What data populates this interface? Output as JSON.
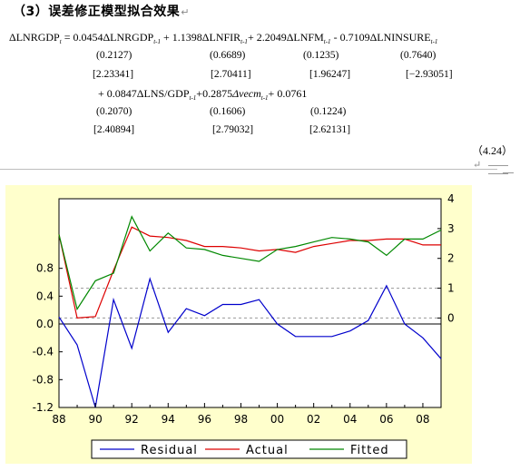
{
  "heading": "（3）误差修正模型拟合效果",
  "paragraph_mark": "↵",
  "equation": {
    "lhs": "ΔLNRGDP",
    "lhs_sub": "t",
    "eq_sign": "=",
    "line1_terms": [
      {
        "coef": "0.0454",
        "var": "ΔLNRGDP",
        "sub": "t-1",
        "op": ""
      },
      {
        "coef": "1.1398",
        "var": "ΔLNFIR",
        "sub": "t-1",
        "op": "+"
      },
      {
        "coef": "2.2049",
        "var": "ΔLNFM",
        "sub": "t-1",
        "op": "+"
      },
      {
        "coef": "0.7109",
        "var": "ΔLNINSURE",
        "sub": "t-1",
        "op": "-"
      }
    ],
    "line1_se": [
      "(0.2127)",
      "(0.6689)",
      "(0.1235)",
      "(0.7640)"
    ],
    "line1_t": [
      "[2.23341]",
      "[2.70411]",
      "[1.96247]",
      "[−2.93051]"
    ],
    "line2_terms": [
      {
        "coef": "0.0847",
        "var": "ΔLNS/GDP",
        "sub": "t-1",
        "op": "+"
      },
      {
        "coef": "0.2875",
        "var": "Δvecm",
        "sub": "t-1",
        "op": "+"
      },
      {
        "coef": "0.0761",
        "var": "",
        "sub": "",
        "op": "+"
      }
    ],
    "line2_se": [
      "(0.2070)",
      "(0.1606)",
      "(0.1224)"
    ],
    "line2_t": [
      "[2.40894]",
      "[2.79032]",
      "[2.62131]"
    ],
    "number": "（4.24）"
  },
  "chart_data": {
    "type": "line",
    "x": [
      1988,
      1989,
      1990,
      1991,
      1992,
      1993,
      1994,
      1995,
      1996,
      1997,
      1998,
      1999,
      2000,
      2001,
      2002,
      2003,
      2004,
      2005,
      2006,
      2007,
      2008,
      2009
    ],
    "xticks": [
      "88",
      "90",
      "92",
      "94",
      "96",
      "98",
      "00",
      "02",
      "04",
      "06",
      "08"
    ],
    "left_axis": {
      "ticks": [
        "0.8",
        "0.4",
        "0.0",
        "-0.4",
        "-0.8",
        "-1.2"
      ],
      "values": [
        0.8,
        0.4,
        0.0,
        -0.4,
        -0.8,
        -1.2
      ],
      "ylim": [
        -1.2,
        1.8
      ]
    },
    "right_axis": {
      "ticks": [
        "4",
        "3",
        "2",
        "1",
        "0"
      ],
      "values": [
        4,
        3,
        2,
        1,
        0
      ],
      "ylim": [
        -3,
        4
      ]
    },
    "series": [
      {
        "name": "Residual",
        "axis": "left",
        "color": "#0000cc",
        "values": [
          0.1,
          -0.3,
          -1.2,
          0.35,
          -0.35,
          0.65,
          -0.12,
          0.22,
          0.12,
          0.28,
          0.28,
          0.35,
          0.0,
          -0.18,
          -0.18,
          -0.18,
          -0.1,
          0.05,
          0.55,
          0.0,
          -0.2,
          -0.5
        ]
      },
      {
        "name": "Actual",
        "axis": "right",
        "color": "#dd0000",
        "values": [
          2.8,
          0.0,
          0.05,
          1.6,
          3.05,
          2.75,
          2.7,
          2.6,
          2.4,
          2.4,
          2.35,
          2.25,
          2.3,
          2.2,
          2.4,
          2.5,
          2.6,
          2.6,
          2.65,
          2.65,
          2.45,
          2.45
        ]
      },
      {
        "name": "Fitted",
        "axis": "right",
        "color": "#008800",
        "values": [
          2.8,
          0.3,
          1.25,
          1.5,
          3.4,
          2.25,
          2.85,
          2.35,
          2.3,
          2.1,
          2.0,
          1.9,
          2.3,
          2.4,
          2.55,
          2.7,
          2.65,
          2.55,
          2.1,
          2.65,
          2.65,
          2.95
        ]
      }
    ],
    "reference_lines_right": [
      1,
      0
    ],
    "zero_line_left": 0.0,
    "legend_position": "bottom"
  }
}
